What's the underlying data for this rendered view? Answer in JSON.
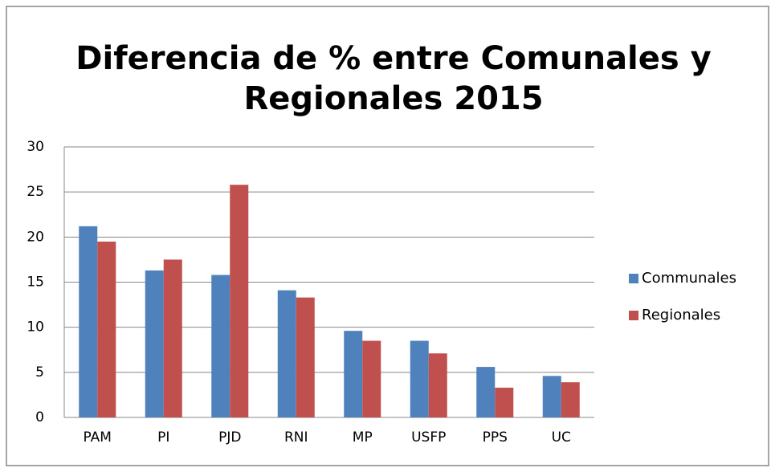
{
  "chart_data": {
    "type": "bar",
    "title_lines": [
      "Diferencia de % entre Comunales y",
      "Regionales 2015"
    ],
    "categories": [
      "PAM",
      "PI",
      "PJD",
      "RNI",
      "MP",
      "USFP",
      "PPS",
      "UC"
    ],
    "series": [
      {
        "name": "Communales",
        "color": "#4f81bd",
        "values": [
          21.2,
          16.3,
          15.8,
          14.1,
          9.6,
          8.5,
          5.6,
          4.6
        ]
      },
      {
        "name": "Regionales",
        "color": "#c0504d",
        "values": [
          19.5,
          17.5,
          25.8,
          13.3,
          8.5,
          7.1,
          3.3,
          3.9
        ]
      }
    ],
    "ylim": [
      0,
      30
    ],
    "yticks": [
      0,
      5,
      10,
      15,
      20,
      25,
      30
    ],
    "grid": true,
    "legend": "right"
  }
}
